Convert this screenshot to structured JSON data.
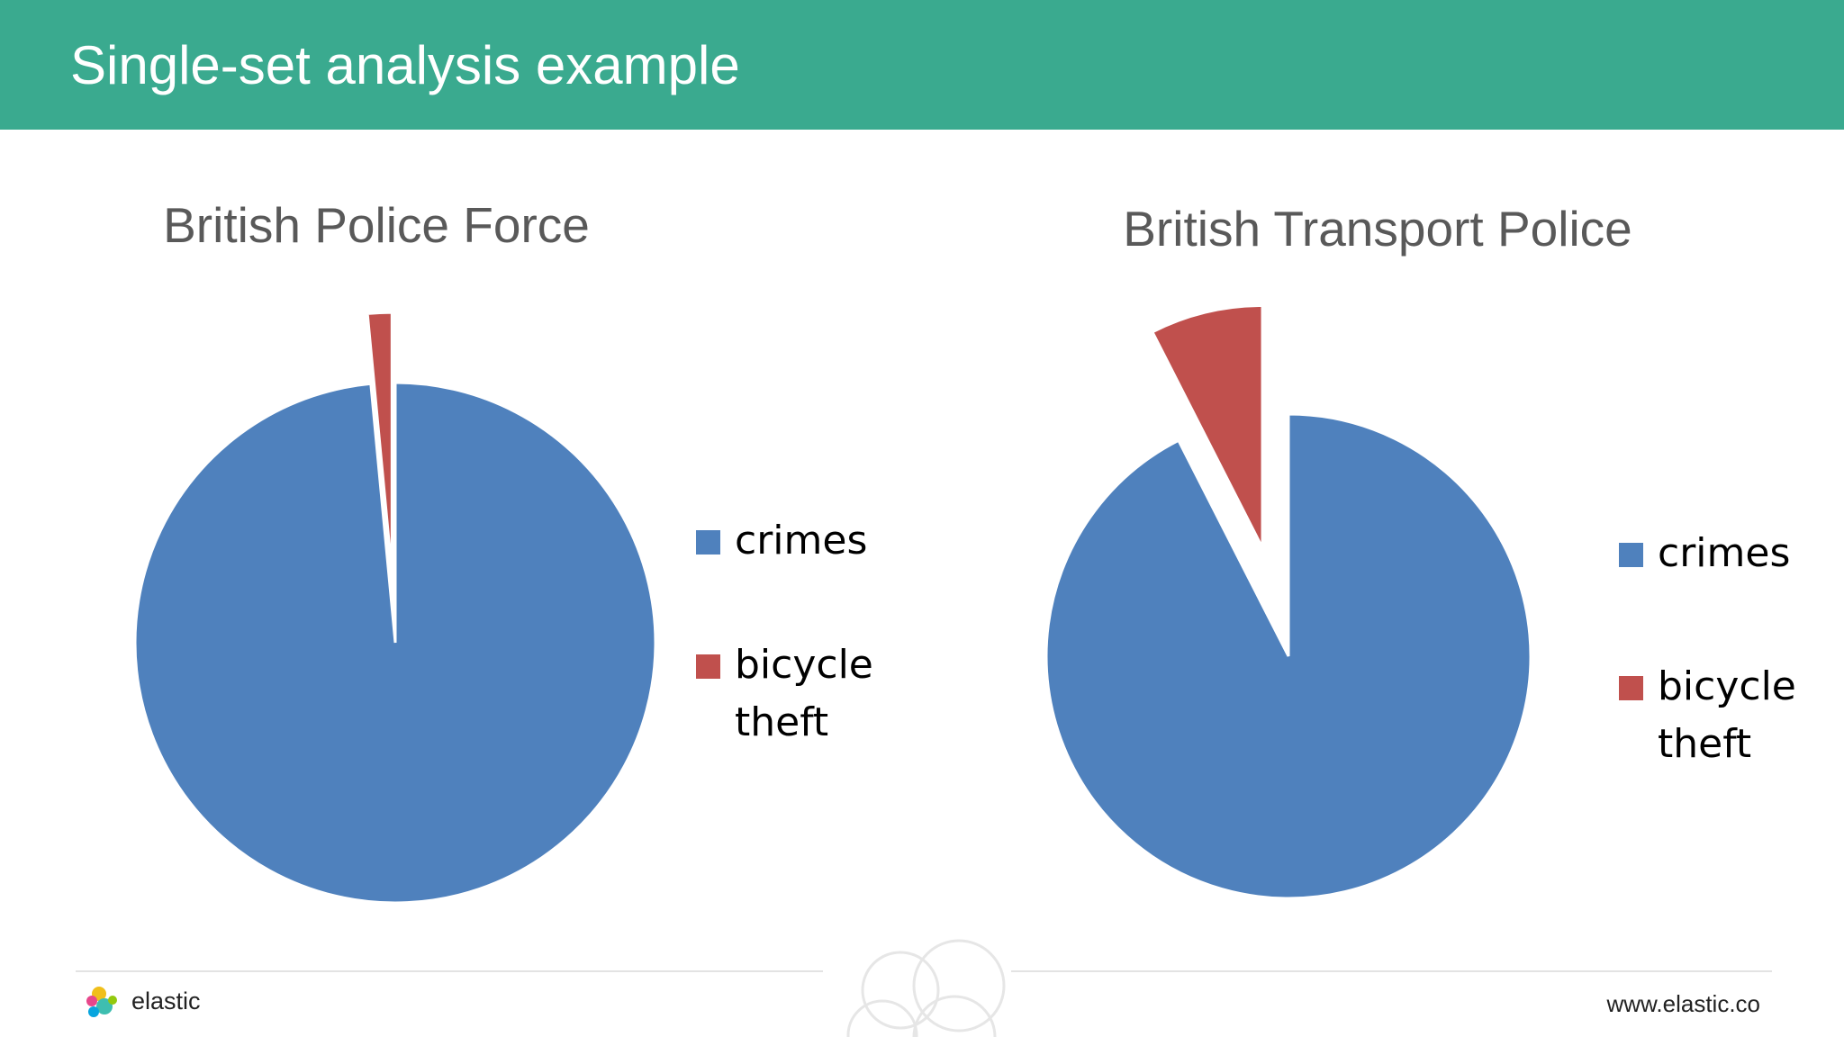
{
  "header": {
    "title": "Single-set analysis example"
  },
  "chart_data": [
    {
      "type": "pie",
      "title": "British Police Force",
      "categories": [
        "crimes",
        "bicycle theft"
      ],
      "values": [
        98.5,
        1.5
      ],
      "colors": [
        "#4f81bd",
        "#c0504d"
      ],
      "explode": [
        false,
        true
      ]
    },
    {
      "type": "pie",
      "title": "British Transport Police",
      "categories": [
        "crimes",
        "bicycle theft"
      ],
      "values": [
        92.5,
        7.5
      ],
      "colors": [
        "#4f81bd",
        "#c0504d"
      ],
      "explode": [
        false,
        true
      ]
    }
  ],
  "footer": {
    "logo": "elastic",
    "url": "www.elastic.co"
  }
}
